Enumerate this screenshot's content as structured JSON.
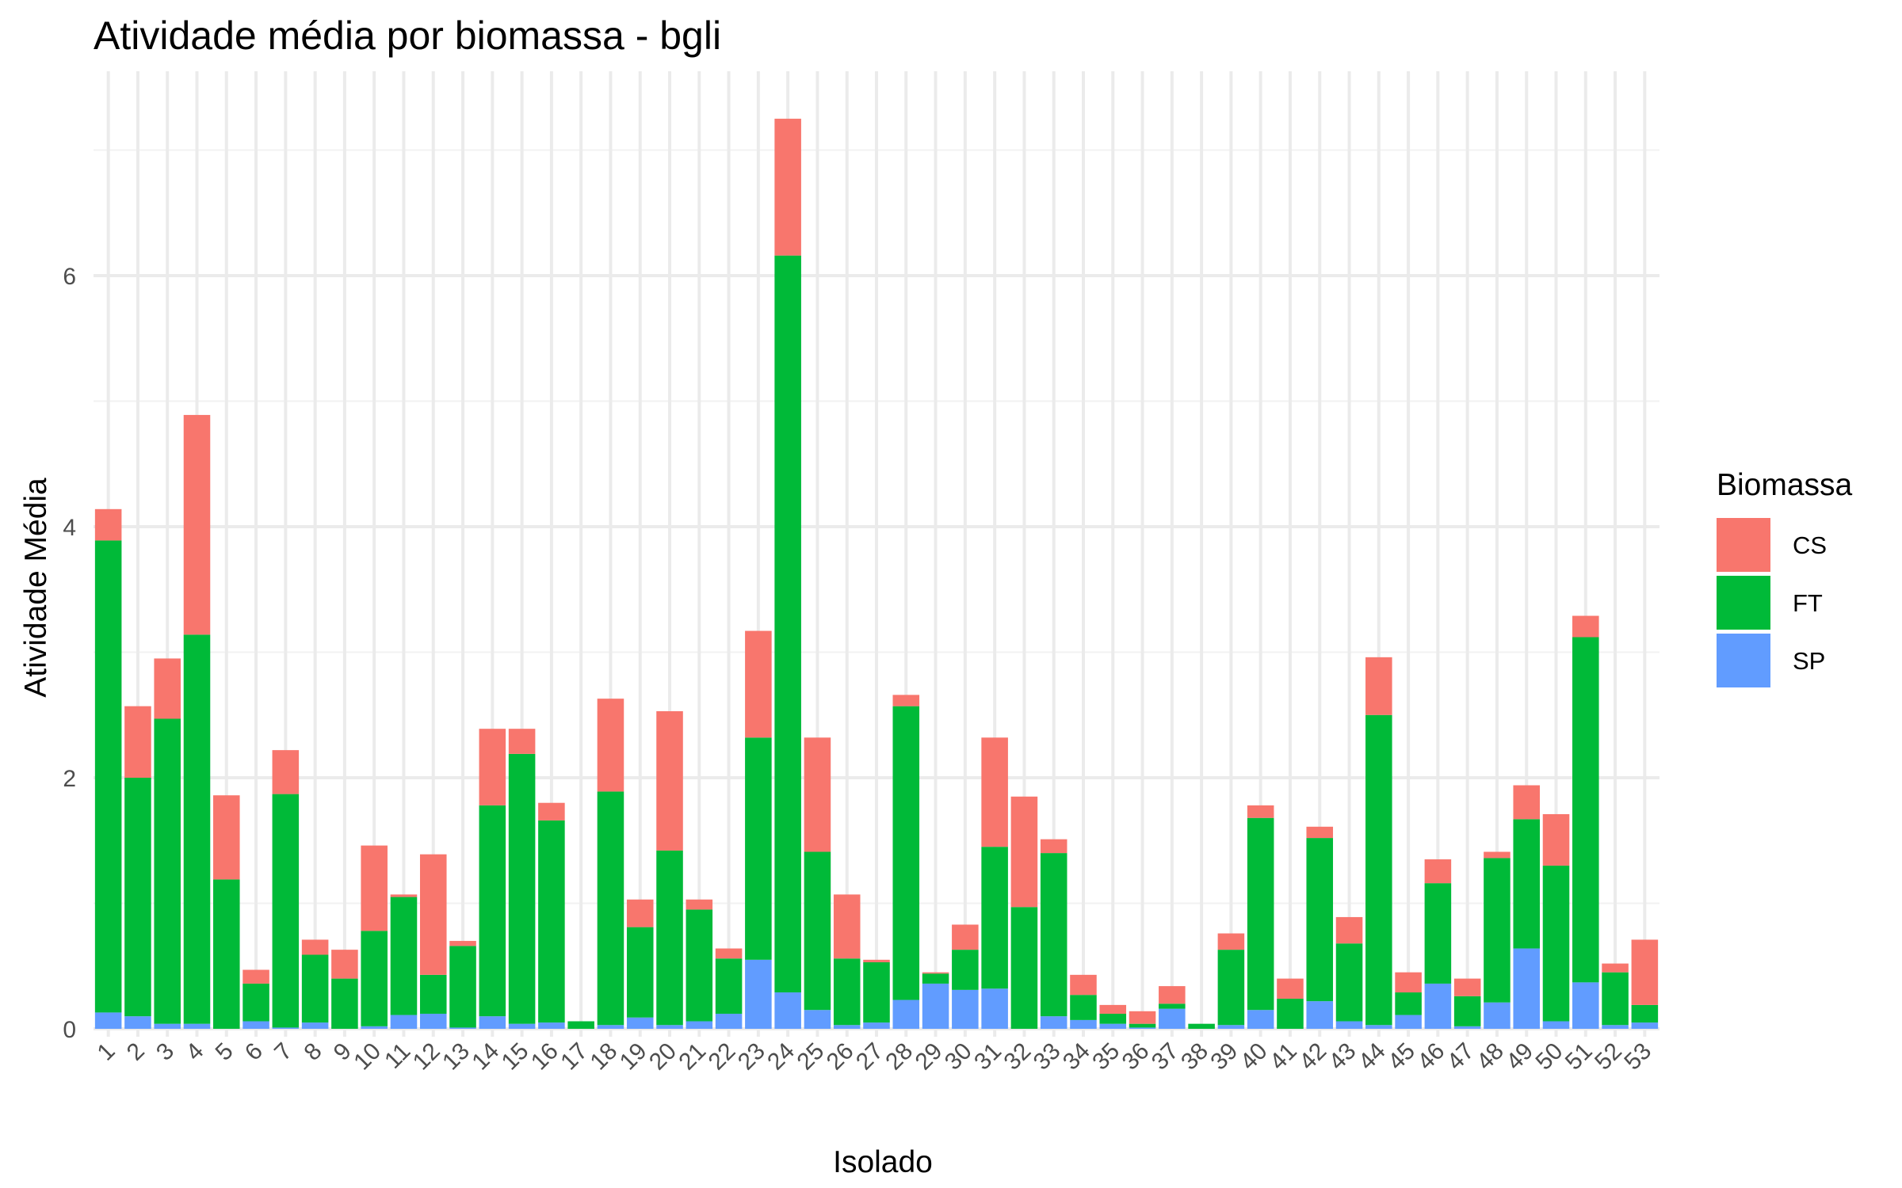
{
  "chart_data": {
    "type": "bar",
    "stacked": true,
    "title": "Atividade média por biomassa - bgli",
    "xlabel": "Isolado",
    "ylabel": "Atividade Média",
    "ylim": [
      0,
      7.6
    ],
    "yticks": [
      0,
      2,
      4,
      6
    ],
    "grid": true,
    "legend": {
      "title": "Biomassa",
      "position": "right"
    },
    "categories": [
      "1",
      "2",
      "3",
      "4",
      "5",
      "6",
      "7",
      "8",
      "9",
      "10",
      "11",
      "12",
      "13",
      "14",
      "15",
      "16",
      "17",
      "18",
      "19",
      "20",
      "21",
      "22",
      "23",
      "24",
      "25",
      "26",
      "27",
      "28",
      "29",
      "30",
      "31",
      "32",
      "33",
      "34",
      "35",
      "36",
      "37",
      "38",
      "39",
      "40",
      "41",
      "42",
      "43",
      "44",
      "45",
      "46",
      "47",
      "48",
      "49",
      "50",
      "51",
      "52",
      "53"
    ],
    "series": [
      {
        "name": "CS",
        "color": "#F8766D",
        "values": [
          0.25,
          0.57,
          0.48,
          1.75,
          0.67,
          0.11,
          0.35,
          0.12,
          0.23,
          0.68,
          0.02,
          0.96,
          0.04,
          0.61,
          0.2,
          0.14,
          0,
          0.74,
          0.22,
          1.11,
          0.08,
          0.08,
          0.85,
          1.09,
          0.91,
          0.51,
          0.02,
          0.09,
          0.01,
          0.2,
          0.87,
          0.88,
          0.11,
          0.16,
          0.07,
          0.1,
          0.14,
          0,
          0.13,
          0.1,
          0.16,
          0.09,
          0.21,
          0.46,
          0.16,
          0.19,
          0.14,
          0.05,
          0.27,
          0.41,
          0.17,
          0.07,
          0.52
        ]
      },
      {
        "name": "FT",
        "color": "#00BA38",
        "values": [
          3.76,
          1.9,
          2.43,
          3.1,
          1.19,
          0.3,
          1.86,
          0.54,
          0.4,
          0.76,
          0.94,
          0.31,
          0.65,
          1.68,
          2.15,
          1.61,
          0.06,
          1.86,
          0.72,
          1.39,
          0.89,
          0.44,
          1.77,
          5.87,
          1.26,
          0.53,
          0.48,
          2.34,
          0.08,
          0.32,
          1.13,
          0.97,
          1.3,
          0.2,
          0.08,
          0.03,
          0.04,
          0.04,
          0.6,
          1.53,
          0.24,
          1.3,
          0.62,
          2.47,
          0.18,
          0.8,
          0.24,
          1.15,
          1.03,
          1.24,
          2.75,
          0.42,
          0.14
        ]
      },
      {
        "name": "SP",
        "color": "#619CFF",
        "values": [
          0.13,
          0.1,
          0.04,
          0.04,
          0,
          0.06,
          0.01,
          0.05,
          0,
          0.02,
          0.11,
          0.12,
          0.01,
          0.1,
          0.04,
          0.05,
          0,
          0.03,
          0.09,
          0.03,
          0.06,
          0.12,
          0.55,
          0.29,
          0.15,
          0.03,
          0.05,
          0.23,
          0.36,
          0.31,
          0.32,
          0,
          0.1,
          0.07,
          0.04,
          0.01,
          0.16,
          0,
          0.03,
          0.15,
          0,
          0.22,
          0.06,
          0.03,
          0.11,
          0.36,
          0.02,
          0.21,
          0.64,
          0.06,
          0.37,
          0.03,
          0.05
        ]
      }
    ]
  }
}
